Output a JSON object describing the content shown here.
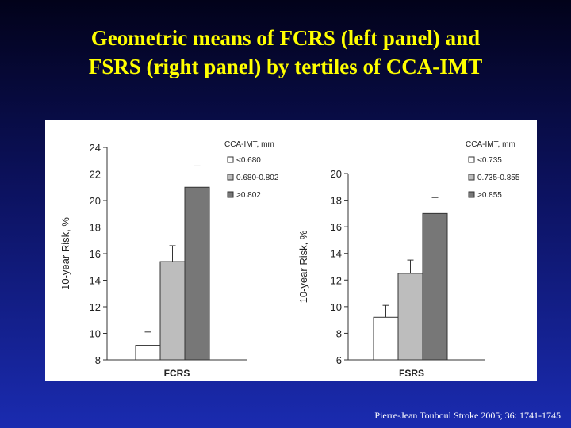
{
  "slide": {
    "title_line1": "Geometric means of FCRS (left panel) and",
    "title_line2": "FSRS (right panel) by tertiles of CCA-IMT",
    "citation": "Pierre-Jean Touboul Stroke 2005; 36: 1741-1745"
  },
  "colors": {
    "bar_low": "#ffffff",
    "bar_mid": "#bdbdbd",
    "bar_high": "#777777",
    "axis": "#333333"
  },
  "chart_data": [
    {
      "type": "bar",
      "xlabel": "FCRS",
      "ylabel": "10-year Risk, %",
      "ylim": [
        8,
        24
      ],
      "yticks": [
        8,
        10,
        12,
        14,
        16,
        18,
        20,
        22,
        24
      ],
      "legend_title": "CCA-IMT, mm",
      "legend_position": "top-right",
      "series": [
        {
          "name": "<0.680",
          "value": 9.1,
          "error": 1.0
        },
        {
          "name": "0.680-0.802",
          "value": 15.4,
          "error": 1.2
        },
        {
          "name": ">0.802",
          "value": 21.0,
          "error": 1.6
        }
      ]
    },
    {
      "type": "bar",
      "xlabel": "FSRS",
      "ylabel": "10-year Risk, %",
      "ylim": [
        6,
        20
      ],
      "yticks": [
        6,
        8,
        10,
        12,
        14,
        16,
        18,
        20
      ],
      "legend_title": "CCA-IMT, mm",
      "legend_position": "top-right",
      "series": [
        {
          "name": "<0.735",
          "value": 9.2,
          "error": 0.9
        },
        {
          "name": "0.735-0.855",
          "value": 12.5,
          "error": 1.0
        },
        {
          "name": ">0.855",
          "value": 17.0,
          "error": 1.2
        }
      ]
    }
  ]
}
